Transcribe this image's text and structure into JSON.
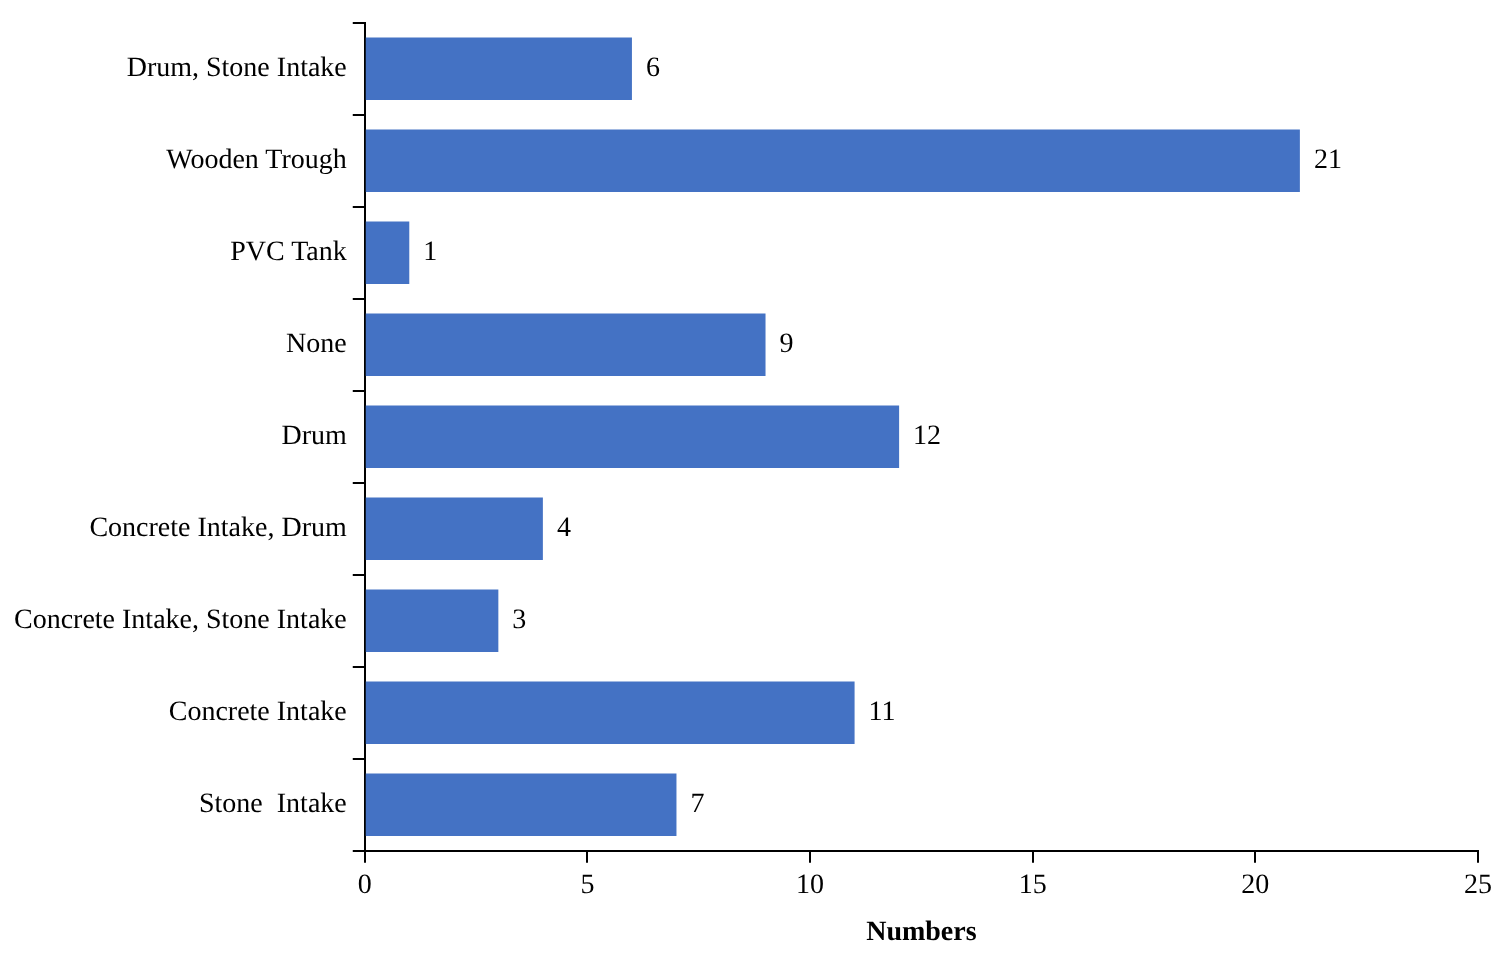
{
  "chart_data": {
    "type": "bar",
    "orientation": "horizontal",
    "xlabel": "Numbers",
    "categories": [
      "Drum, Stone Intake",
      "Wooden Trough",
      "PVC Tank",
      "None",
      "Drum",
      "Concrete Intake, Drum",
      "Concrete Intake, Stone Intake",
      "Concrete Intake",
      "Stone  Intake"
    ],
    "values": [
      6,
      21,
      1,
      9,
      12,
      4,
      3,
      11,
      7
    ],
    "color": "#4472c4",
    "xlim": [
      0,
      25
    ],
    "xticks": [
      0,
      5,
      10,
      15,
      20,
      25
    ],
    "grid": false,
    "legend": false,
    "data_labels": true
  }
}
